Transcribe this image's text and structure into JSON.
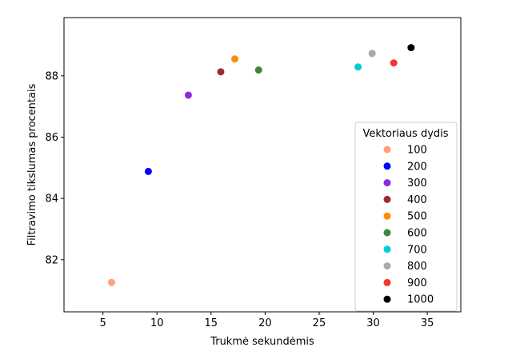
{
  "chart_data": {
    "type": "scatter",
    "xlabel": "Trukmė sekundėmis",
    "ylabel": "Filtravimo tikslumas procentais",
    "xlim": [
      1.4,
      38.1
    ],
    "ylim": [
      80.3,
      89.9
    ],
    "x_ticks": [
      5,
      10,
      15,
      20,
      25,
      30,
      35
    ],
    "y_ticks": [
      82,
      84,
      86,
      88
    ],
    "x_tick_labels": [
      "5",
      "10",
      "15",
      "20",
      "25",
      "30",
      "35"
    ],
    "y_tick_labels": [
      "82",
      "84",
      "86",
      "88"
    ],
    "grid": false,
    "legend": {
      "title": "Vektoriaus dydis",
      "placement": "lower-right"
    },
    "series": [
      {
        "name": "100",
        "x": [
          5.8
        ],
        "y": [
          81.26
        ],
        "color": "#FFA07A"
      },
      {
        "name": "200",
        "x": [
          9.2
        ],
        "y": [
          84.88
        ],
        "color": "#0000FF"
      },
      {
        "name": "300",
        "x": [
          12.9
        ],
        "y": [
          87.37
        ],
        "color": "#8A2BE2"
      },
      {
        "name": "400",
        "x": [
          15.9
        ],
        "y": [
          88.13
        ],
        "color": "#A52A2A"
      },
      {
        "name": "500",
        "x": [
          17.2
        ],
        "y": [
          88.55
        ],
        "color": "#FF8C00"
      },
      {
        "name": "600",
        "x": [
          19.4
        ],
        "y": [
          88.19
        ],
        "color": "#3A8A3A"
      },
      {
        "name": "700",
        "x": [
          28.6
        ],
        "y": [
          88.29
        ],
        "color": "#00CED1"
      },
      {
        "name": "800",
        "x": [
          29.9
        ],
        "y": [
          88.73
        ],
        "color": "#A9A9A9"
      },
      {
        "name": "900",
        "x": [
          31.9
        ],
        "y": [
          88.42
        ],
        "color": "#FF3030"
      },
      {
        "name": "1000",
        "x": [
          33.5
        ],
        "y": [
          88.92
        ],
        "color": "#000000"
      }
    ]
  }
}
